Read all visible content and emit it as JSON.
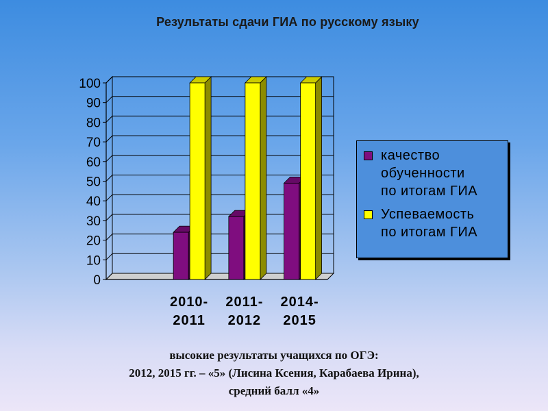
{
  "title": "Результаты сдачи ГИА по русскому языку",
  "chart_data": {
    "type": "bar",
    "title": "Результаты сдачи ГИА по русскому языку",
    "categories": [
      "",
      "2010-\n2011",
      "2011-\n2012",
      "2014-\n2015"
    ],
    "series": [
      {
        "name": "качество обученности по итогам ГИА",
        "values": [
          0,
          24,
          32,
          49
        ],
        "color": "#7f0d7f"
      },
      {
        "name": "Успеваемость по итогам ГИА",
        "values": [
          0,
          100,
          100,
          100
        ],
        "color": "#ffff00"
      }
    ],
    "ylim": [
      0,
      100
    ],
    "yticks": [
      0,
      10,
      20,
      30,
      40,
      50,
      60,
      70,
      80,
      90,
      100
    ],
    "xlabel": "",
    "ylabel": "",
    "grid": "horizontal",
    "legend": "right"
  },
  "legend": {
    "items": [
      {
        "label": "качество\nобученности\nпо итогам ГИА",
        "color": "#7f0d7f"
      },
      {
        "label": "Успеваемость\nпо итогам ГИА",
        "color": "#ffff00"
      }
    ]
  },
  "note": {
    "line1": "высокие результаты учащихся по ОГЭ:",
    "line2": "2012, 2015 гг. – «5» (Лисина Ксения, Карабаева Ирина),",
    "line3": "средний балл «4»"
  }
}
